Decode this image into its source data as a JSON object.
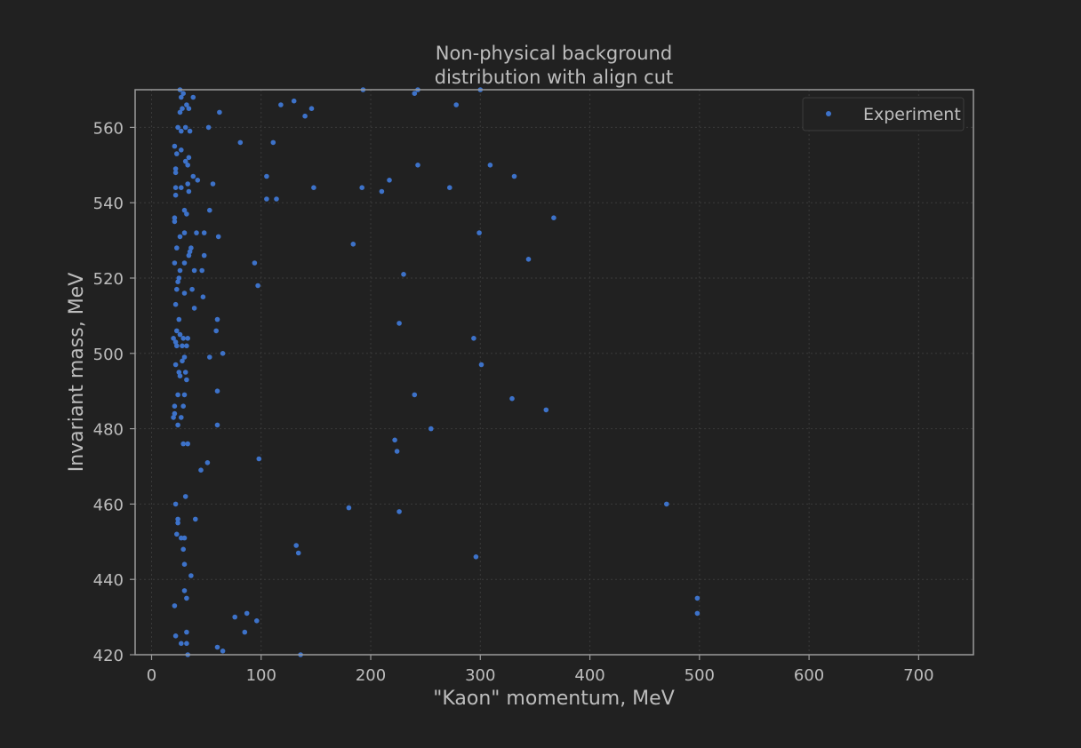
{
  "chart_data": {
    "type": "scatter",
    "title": [
      "Non-physical background",
      "distribution with align cut"
    ],
    "xlabel": "\"Kaon\" momentum, MeV",
    "ylabel": "Invariant mass, MeV",
    "xlim": [
      -15,
      750
    ],
    "ylim": [
      420,
      570
    ],
    "xticks": [
      0,
      100,
      200,
      300,
      400,
      500,
      600,
      700
    ],
    "yticks": [
      420,
      440,
      460,
      480,
      500,
      520,
      540,
      560
    ],
    "grid": true,
    "legend": {
      "position": "top-right",
      "entries": [
        "Experiment"
      ]
    },
    "colors": {
      "background": "#212121",
      "marker": "#3d72c9",
      "text": "#bdbdbd",
      "axes": "#9a9a9a",
      "grid": "#3a3a3a"
    },
    "series": [
      {
        "name": "Experiment",
        "points": [
          [
            26,
            570
          ],
          [
            29,
            569
          ],
          [
            27,
            568
          ],
          [
            38,
            568
          ],
          [
            32,
            566
          ],
          [
            34,
            565
          ],
          [
            28,
            565
          ],
          [
            26,
            564
          ],
          [
            62,
            564
          ],
          [
            24,
            560
          ],
          [
            27,
            559
          ],
          [
            31,
            560
          ],
          [
            35,
            559
          ],
          [
            52,
            560
          ],
          [
            21,
            555
          ],
          [
            27,
            554
          ],
          [
            23,
            553
          ],
          [
            34,
            552
          ],
          [
            31,
            551
          ],
          [
            33,
            550
          ],
          [
            22,
            549
          ],
          [
            22,
            548
          ],
          [
            38,
            547
          ],
          [
            42,
            546
          ],
          [
            33,
            545
          ],
          [
            27,
            544
          ],
          [
            22,
            544
          ],
          [
            34,
            543
          ],
          [
            22,
            542
          ],
          [
            56,
            545
          ],
          [
            30,
            538
          ],
          [
            53,
            538
          ],
          [
            32,
            537
          ],
          [
            21,
            536
          ],
          [
            21,
            535
          ],
          [
            30,
            532
          ],
          [
            41,
            532
          ],
          [
            48,
            532
          ],
          [
            26,
            531
          ],
          [
            61,
            531
          ],
          [
            23,
            528
          ],
          [
            36,
            528
          ],
          [
            35,
            527
          ],
          [
            34,
            526
          ],
          [
            48,
            526
          ],
          [
            30,
            524
          ],
          [
            21,
            524
          ],
          [
            39,
            522
          ],
          [
            46,
            522
          ],
          [
            26,
            522
          ],
          [
            25,
            520
          ],
          [
            24,
            519
          ],
          [
            37,
            517
          ],
          [
            23,
            517
          ],
          [
            30,
            516
          ],
          [
            47,
            515
          ],
          [
            22,
            513
          ],
          [
            39,
            512
          ],
          [
            25,
            509
          ],
          [
            60,
            509
          ],
          [
            23,
            506
          ],
          [
            26,
            505
          ],
          [
            59,
            506
          ],
          [
            20,
            504
          ],
          [
            29,
            504
          ],
          [
            33,
            504
          ],
          [
            22,
            503
          ],
          [
            23,
            502
          ],
          [
            28,
            502
          ],
          [
            32,
            502
          ],
          [
            30,
            499
          ],
          [
            28,
            498
          ],
          [
            53,
            499
          ],
          [
            65,
            500
          ],
          [
            22,
            497
          ],
          [
            25,
            495
          ],
          [
            31,
            495
          ],
          [
            26,
            494
          ],
          [
            32,
            493
          ],
          [
            24,
            489
          ],
          [
            30,
            489
          ],
          [
            60,
            490
          ],
          [
            21,
            486
          ],
          [
            29,
            486
          ],
          [
            21,
            484
          ],
          [
            20,
            483
          ],
          [
            27,
            483
          ],
          [
            24,
            481
          ],
          [
            60,
            481
          ],
          [
            29,
            476
          ],
          [
            33,
            476
          ],
          [
            51,
            471
          ],
          [
            45,
            469
          ],
          [
            22,
            460
          ],
          [
            31,
            462
          ],
          [
            24,
            456
          ],
          [
            40,
            456
          ],
          [
            24,
            455
          ],
          [
            23,
            452
          ],
          [
            27,
            451
          ],
          [
            30,
            451
          ],
          [
            29,
            448
          ],
          [
            30,
            444
          ],
          [
            36,
            441
          ],
          [
            21,
            433
          ],
          [
            30,
            437
          ],
          [
            32,
            435
          ],
          [
            32,
            426
          ],
          [
            22,
            425
          ],
          [
            27,
            423
          ],
          [
            32,
            423
          ],
          [
            33,
            420
          ],
          [
            60,
            422
          ],
          [
            65,
            421
          ],
          [
            81,
            556
          ],
          [
            111,
            556
          ],
          [
            94,
            524
          ],
          [
            97,
            518
          ],
          [
            105,
            547
          ],
          [
            105,
            541
          ],
          [
            114,
            541
          ],
          [
            118,
            566
          ],
          [
            130,
            567
          ],
          [
            140,
            563
          ],
          [
            146,
            565
          ],
          [
            148,
            544
          ],
          [
            193,
            570
          ],
          [
            184,
            529
          ],
          [
            192,
            544
          ],
          [
            210,
            543
          ],
          [
            217,
            546
          ],
          [
            240,
            569
          ],
          [
            243,
            570
          ],
          [
            243,
            550
          ],
          [
            230,
            521
          ],
          [
            226,
            508
          ],
          [
            240,
            489
          ],
          [
            255,
            480
          ],
          [
            222,
            477
          ],
          [
            224,
            474
          ],
          [
            98,
            472
          ],
          [
            180,
            459
          ],
          [
            226,
            458
          ],
          [
            132,
            449
          ],
          [
            134,
            447
          ],
          [
            76,
            430
          ],
          [
            87,
            431
          ],
          [
            96,
            429
          ],
          [
            85,
            426
          ],
          [
            136,
            420
          ],
          [
            272,
            544
          ],
          [
            278,
            566
          ],
          [
            300,
            570
          ],
          [
            299,
            532
          ],
          [
            309,
            550
          ],
          [
            331,
            547
          ],
          [
            344,
            525
          ],
          [
            367,
            536
          ],
          [
            294,
            504
          ],
          [
            301,
            497
          ],
          [
            329,
            488
          ],
          [
            360,
            485
          ],
          [
            296,
            446
          ],
          [
            470,
            460
          ],
          [
            498,
            435
          ],
          [
            498,
            431
          ]
        ]
      }
    ]
  }
}
